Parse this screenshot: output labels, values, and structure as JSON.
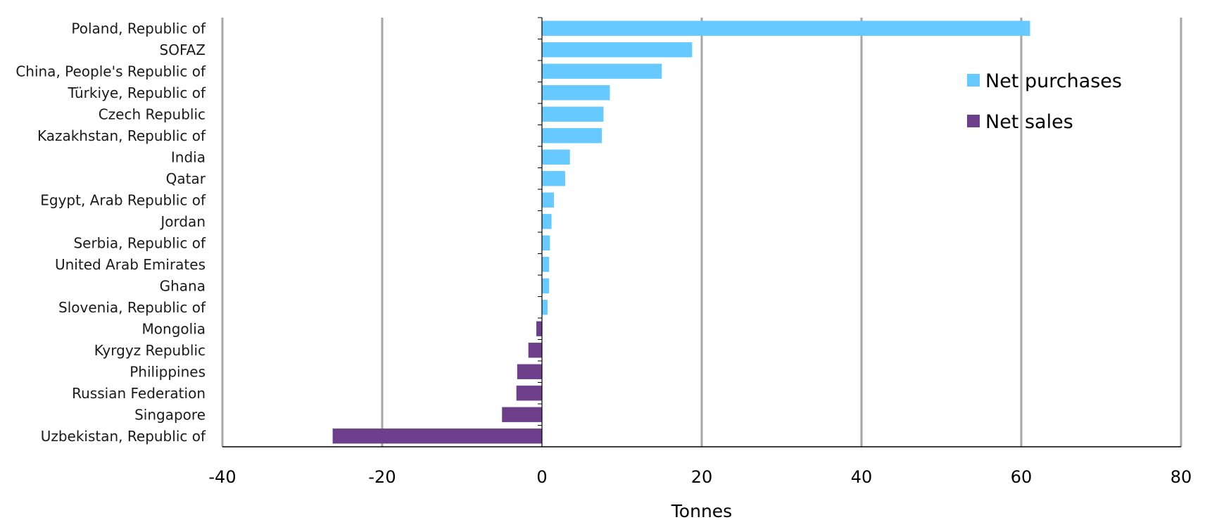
{
  "chart_data": {
    "type": "bar",
    "orientation": "horizontal",
    "categories": [
      "Poland, Republic of",
      "SOFAZ",
      "China, People's Republic of",
      "Türkiye, Republic of",
      "Czech Republic",
      "Kazakhstan, Republic of",
      "India",
      "Qatar",
      "Egypt, Arab Republic of",
      "Jordan",
      "Serbia, Republic of",
      "United Arab Emirates",
      "Ghana",
      "Slovenia, Republic of",
      "Mongolia",
      "Kyrgyz Republic",
      "Philippines",
      "Russian Federation",
      "Singapore",
      "Uzbekistan, Republic of"
    ],
    "values": [
      61.1,
      18.8,
      15.0,
      8.5,
      7.7,
      7.5,
      3.5,
      2.9,
      1.5,
      1.2,
      1.0,
      0.9,
      0.9,
      0.7,
      -0.7,
      -1.7,
      -3.1,
      -3.2,
      -5.0,
      -26.2
    ],
    "series": [
      {
        "name": "Net purchases",
        "color": "#66c9ff"
      },
      {
        "name": "Net sales",
        "color": "#6d3f8a"
      }
    ],
    "xlabel": "Tonnes",
    "ylabel": "",
    "title": "",
    "xlim": [
      -40,
      80
    ],
    "xticks": [
      "-40",
      "-20",
      "0",
      "20",
      "40",
      "60",
      "80"
    ],
    "grid": "vertical",
    "legend": "top-right"
  }
}
